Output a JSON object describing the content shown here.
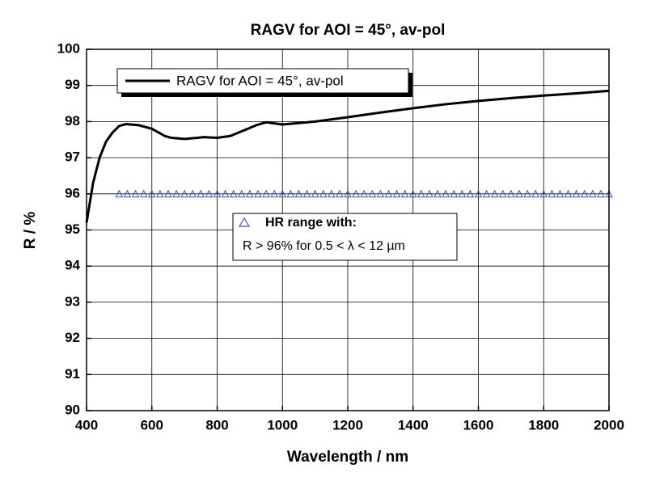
{
  "chart_data": {
    "type": "line",
    "title": "RAGV for AOI = 45°, av-pol",
    "x_label": "Wavelength / nm",
    "y_label": "R / %",
    "xlim": [
      400,
      2000
    ],
    "xticks": [
      400,
      600,
      800,
      1000,
      1200,
      1400,
      1600,
      1800,
      2000
    ],
    "ylim": [
      90,
      100
    ],
    "yticks": [
      90,
      91,
      92,
      93,
      94,
      95,
      96,
      97,
      98,
      99,
      100
    ],
    "grid": true,
    "series": [
      {
        "name": "RAGV for AOI = 45°, av-pol",
        "color": "#000000",
        "style": "line",
        "x": [
          400,
          420,
          440,
          460,
          480,
          500,
          520,
          560,
          600,
          640,
          660,
          700,
          740,
          760,
          800,
          840,
          880,
          920,
          950,
          1000,
          1100,
          1200,
          1300,
          1400,
          1500,
          1600,
          1700,
          1800,
          1900,
          2000
        ],
        "values": [
          95.2,
          96.3,
          97.0,
          97.45,
          97.7,
          97.88,
          97.93,
          97.9,
          97.8,
          97.6,
          97.55,
          97.52,
          97.55,
          97.57,
          97.55,
          97.6,
          97.75,
          97.9,
          97.98,
          97.92,
          98.0,
          98.12,
          98.25,
          98.37,
          98.48,
          98.57,
          98.65,
          98.72,
          98.78,
          98.85
        ]
      },
      {
        "name": "HR range with:",
        "color": "#3355cc",
        "style": "triangle",
        "x": [
          500,
          525,
          550,
          575,
          600,
          625,
          650,
          675,
          700,
          725,
          750,
          775,
          800,
          825,
          850,
          875,
          900,
          925,
          950,
          975,
          1000,
          1025,
          1050,
          1075,
          1100,
          1125,
          1150,
          1175,
          1200,
          1225,
          1250,
          1275,
          1300,
          1325,
          1350,
          1375,
          1400,
          1425,
          1450,
          1475,
          1500,
          1525,
          1550,
          1575,
          1600,
          1625,
          1650,
          1675,
          1700,
          1725,
          1750,
          1775,
          1800,
          1825,
          1850,
          1875,
          1900,
          1925,
          1950,
          1975,
          2000
        ],
        "values": [
          96,
          96,
          96,
          96,
          96,
          96,
          96,
          96,
          96,
          96,
          96,
          96,
          96,
          96,
          96,
          96,
          96,
          96,
          96,
          96,
          96,
          96,
          96,
          96,
          96,
          96,
          96,
          96,
          96,
          96,
          96,
          96,
          96,
          96,
          96,
          96,
          96,
          96,
          96,
          96,
          96,
          96,
          96,
          96,
          96,
          96,
          96,
          96,
          96,
          96,
          96,
          96,
          96,
          96,
          96,
          96,
          96,
          96,
          96,
          96,
          96
        ]
      }
    ],
    "annotation": "R > 96% for 0.5 < λ < 12 µm"
  }
}
